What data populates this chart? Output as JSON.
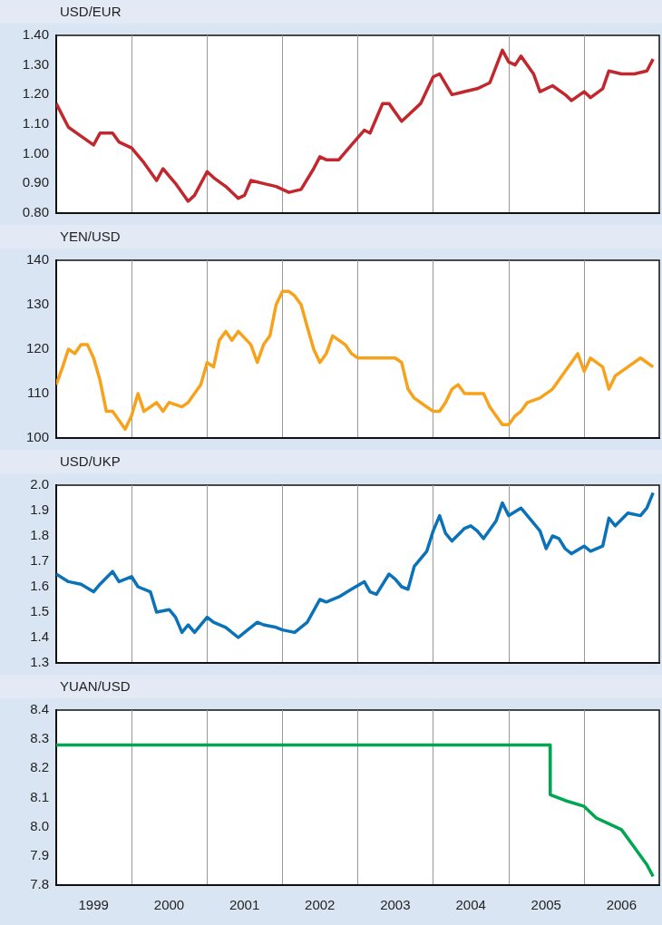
{
  "chart_data": [
    {
      "type": "line",
      "title": "USD/EUR",
      "color": "#c1272d",
      "grid": "x",
      "tick_labels": "y",
      "xlim": [
        "1999-01-01",
        "2006-12-31"
      ],
      "xticks": [
        {
          "value": "2000-01-01",
          "label": null
        },
        {
          "value": "2001-01-01",
          "label": null
        },
        {
          "value": "2002-01-01",
          "label": null
        },
        {
          "value": "2003-01-01",
          "label": null
        },
        {
          "value": "2004-01-01",
          "label": null
        },
        {
          "value": "2005-01-01",
          "label": null
        },
        {
          "value": "2006-01-01",
          "label": null
        }
      ],
      "ylim": [
        0.8,
        1.4
      ],
      "yticks": [
        {
          "value": 0.8,
          "label": "0.80"
        },
        {
          "value": 0.9,
          "label": "0.90"
        },
        {
          "value": 1.0,
          "label": "1.00"
        },
        {
          "value": 1.1,
          "label": "1.10"
        },
        {
          "value": 1.2,
          "label": "1.20"
        },
        {
          "value": 1.3,
          "label": "1.30"
        },
        {
          "value": 1.4,
          "label": "1.40"
        }
      ],
      "x": [
        "1999-01",
        "1999-03",
        "1999-05",
        "1999-07",
        "1999-08",
        "1999-10",
        "1999-11",
        "2000-01",
        "2000-03",
        "2000-05",
        "2000-06",
        "2000-08",
        "2000-10",
        "2000-11",
        "2001-01",
        "2001-02",
        "2001-04",
        "2001-06",
        "2001-07",
        "2001-08",
        "2001-10",
        "2001-12",
        "2002-02",
        "2002-04",
        "2002-06",
        "2002-07",
        "2002-08",
        "2002-10",
        "2002-12",
        "2003-02",
        "2003-03",
        "2003-05",
        "2003-06",
        "2003-08",
        "2003-09",
        "2003-11",
        "2004-01",
        "2004-02",
        "2004-04",
        "2004-06",
        "2004-08",
        "2004-10",
        "2004-12",
        "2005-01",
        "2005-02",
        "2005-03",
        "2005-05",
        "2005-06",
        "2005-08",
        "2005-10",
        "2005-11",
        "2006-01",
        "2006-02",
        "2006-04",
        "2006-05",
        "2006-07",
        "2006-09",
        "2006-11",
        "2006-12"
      ],
      "values": [
        1.17,
        1.09,
        1.06,
        1.03,
        1.07,
        1.07,
        1.04,
        1.02,
        0.97,
        0.91,
        0.95,
        0.9,
        0.84,
        0.86,
        0.94,
        0.92,
        0.89,
        0.85,
        0.86,
        0.91,
        0.9,
        0.89,
        0.87,
        0.88,
        0.95,
        0.99,
        0.98,
        0.98,
        1.03,
        1.08,
        1.07,
        1.17,
        1.17,
        1.11,
        1.13,
        1.17,
        1.26,
        1.27,
        1.2,
        1.21,
        1.22,
        1.24,
        1.35,
        1.31,
        1.3,
        1.33,
        1.27,
        1.21,
        1.23,
        1.2,
        1.18,
        1.21,
        1.19,
        1.22,
        1.28,
        1.27,
        1.27,
        1.28,
        1.32
      ]
    },
    {
      "type": "line",
      "title": "YEN/USD",
      "color": "#f7a21b",
      "grid": "x",
      "tick_labels": "y",
      "xlim": [
        "1999-01-01",
        "2006-12-31"
      ],
      "xticks": [
        {
          "value": "2000-01-01",
          "label": null
        },
        {
          "value": "2001-01-01",
          "label": null
        },
        {
          "value": "2002-01-01",
          "label": null
        },
        {
          "value": "2003-01-01",
          "label": null
        },
        {
          "value": "2004-01-01",
          "label": null
        },
        {
          "value": "2005-01-01",
          "label": null
        },
        {
          "value": "2006-01-01",
          "label": null
        }
      ],
      "ylim": [
        100,
        140
      ],
      "yticks": [
        100,
        110,
        120,
        130,
        140
      ],
      "x": [
        "1999-01",
        "1999-02",
        "1999-03",
        "1999-04",
        "1999-05",
        "1999-06",
        "1999-07",
        "1999-08",
        "1999-09",
        "1999-10",
        "1999-11",
        "1999-12",
        "2000-01",
        "2000-02",
        "2000-03",
        "2000-04",
        "2000-05",
        "2000-06",
        "2000-07",
        "2000-09",
        "2000-10",
        "2000-12",
        "2001-01",
        "2001-02",
        "2001-03",
        "2001-04",
        "2001-05",
        "2001-06",
        "2001-08",
        "2001-09",
        "2001-10",
        "2001-11",
        "2001-12",
        "2002-01",
        "2002-02",
        "2002-03",
        "2002-04",
        "2002-05",
        "2002-06",
        "2002-07",
        "2002-08",
        "2002-09",
        "2002-10",
        "2002-11",
        "2002-12",
        "2003-01",
        "2003-03",
        "2003-05",
        "2003-07",
        "2003-08",
        "2003-09",
        "2003-10",
        "2003-12",
        "2004-01",
        "2004-02",
        "2004-03",
        "2004-04",
        "2004-05",
        "2004-06",
        "2004-08",
        "2004-09",
        "2004-10",
        "2004-12",
        "2005-01",
        "2005-02",
        "2005-03",
        "2005-04",
        "2005-06",
        "2005-08",
        "2005-10",
        "2005-12",
        "2006-01",
        "2006-02",
        "2006-04",
        "2006-05",
        "2006-06",
        "2006-08",
        "2006-10",
        "2006-11",
        "2006-12"
      ],
      "values": [
        112,
        116,
        120,
        119,
        121,
        121,
        118,
        113,
        106,
        106,
        104,
        102,
        105,
        110,
        106,
        107,
        108,
        106,
        108,
        107,
        108,
        112,
        117,
        116,
        122,
        124,
        122,
        124,
        121,
        117,
        121,
        123,
        130,
        133,
        133,
        132,
        130,
        125,
        120,
        117,
        119,
        123,
        122,
        121,
        119,
        118,
        118,
        118,
        118,
        117,
        111,
        109,
        107,
        106,
        106,
        108,
        111,
        112,
        110,
        110,
        110,
        107,
        103,
        103,
        105,
        106,
        108,
        109,
        111,
        115,
        119,
        115,
        118,
        116,
        111,
        114,
        116,
        118,
        117,
        116
      ]
    },
    {
      "type": "line",
      "title": "USD/UKP",
      "color": "#0a72b8",
      "grid": "x",
      "tick_labels": "y",
      "xlim": [
        "1999-01-01",
        "2006-12-31"
      ],
      "xticks": [
        {
          "value": "2000-01-01",
          "label": null
        },
        {
          "value": "2001-01-01",
          "label": null
        },
        {
          "value": "2002-01-01",
          "label": null
        },
        {
          "value": "2003-01-01",
          "label": null
        },
        {
          "value": "2004-01-01",
          "label": null
        },
        {
          "value": "2005-01-01",
          "label": null
        },
        {
          "value": "2006-01-01",
          "label": null
        }
      ],
      "ylim": [
        1.3,
        2.0
      ],
      "yticks": [
        1.3,
        1.4,
        1.5,
        1.6,
        1.7,
        1.8,
        1.9,
        {
          "value": 2.0,
          "label": "2.0"
        }
      ],
      "x": [
        "1999-01",
        "1999-03",
        "1999-05",
        "1999-07",
        "1999-08",
        "1999-10",
        "1999-11",
        "2000-01",
        "2000-02",
        "2000-04",
        "2000-05",
        "2000-07",
        "2000-08",
        "2000-09",
        "2000-10",
        "2000-11",
        "2001-01",
        "2001-02",
        "2001-04",
        "2001-06",
        "2001-07",
        "2001-09",
        "2001-10",
        "2001-12",
        "2002-01",
        "2002-03",
        "2002-05",
        "2002-07",
        "2002-08",
        "2002-10",
        "2002-12",
        "2003-02",
        "2003-03",
        "2003-04",
        "2003-06",
        "2003-07",
        "2003-08",
        "2003-09",
        "2003-10",
        "2003-12",
        "2004-01",
        "2004-02",
        "2004-03",
        "2004-04",
        "2004-06",
        "2004-07",
        "2004-08",
        "2004-09",
        "2004-11",
        "2004-12",
        "2005-01",
        "2005-03",
        "2005-04",
        "2005-06",
        "2005-07",
        "2005-08",
        "2005-09",
        "2005-10",
        "2005-11",
        "2006-01",
        "2006-02",
        "2006-04",
        "2006-05",
        "2006-06",
        "2006-08",
        "2006-10",
        "2006-11",
        "2006-12"
      ],
      "values": [
        1.65,
        1.62,
        1.61,
        1.58,
        1.61,
        1.66,
        1.62,
        1.64,
        1.6,
        1.58,
        1.5,
        1.51,
        1.48,
        1.42,
        1.45,
        1.42,
        1.48,
        1.46,
        1.44,
        1.4,
        1.42,
        1.46,
        1.45,
        1.44,
        1.43,
        1.42,
        1.46,
        1.55,
        1.54,
        1.56,
        1.59,
        1.62,
        1.58,
        1.57,
        1.65,
        1.63,
        1.6,
        1.59,
        1.68,
        1.74,
        1.82,
        1.88,
        1.81,
        1.78,
        1.83,
        1.84,
        1.82,
        1.79,
        1.86,
        1.93,
        1.88,
        1.91,
        1.88,
        1.82,
        1.75,
        1.8,
        1.79,
        1.75,
        1.73,
        1.76,
        1.74,
        1.76,
        1.87,
        1.84,
        1.89,
        1.88,
        1.91,
        1.97
      ]
    },
    {
      "type": "line",
      "title": "YUAN/USD",
      "color": "#00a651",
      "grid": "x",
      "xlim": [
        "1999-01-01",
        "2006-12-31"
      ],
      "xticks": [
        {
          "value": "1999-07-01",
          "label": "1999"
        },
        {
          "value": "2000-01-01",
          "label": null
        },
        {
          "value": "2000-07-01",
          "label": "2000"
        },
        {
          "value": "2001-01-01",
          "label": null
        },
        {
          "value": "2001-07-01",
          "label": "2001"
        },
        {
          "value": "2002-01-01",
          "label": null
        },
        {
          "value": "2002-07-01",
          "label": "2002"
        },
        {
          "value": "2003-01-01",
          "label": null
        },
        {
          "value": "2003-07-01",
          "label": "2003"
        },
        {
          "value": "2004-01-01",
          "label": null
        },
        {
          "value": "2004-07-01",
          "label": "2004"
        },
        {
          "value": "2005-01-01",
          "label": null
        },
        {
          "value": "2005-07-01",
          "label": "2005"
        },
        {
          "value": "2006-01-01",
          "label": null
        },
        {
          "value": "2006-07-01",
          "label": "2006"
        }
      ],
      "ylim": [
        7.8,
        8.4
      ],
      "yticks": [
        7.8,
        7.9,
        {
          "value": 8.0,
          "label": "8.0"
        },
        8.1,
        8.2,
        8.3,
        8.4
      ],
      "x": [
        "1999-01",
        "2000-01",
        "2001-01",
        "2002-01",
        "2003-01",
        "2004-01",
        "2005-01",
        "2005-07-20",
        "2005-07-21",
        "2005-10",
        "2006-01",
        "2006-03",
        "2006-05",
        "2006-07",
        "2006-09",
        "2006-10",
        "2006-11",
        "2006-12"
      ],
      "values": [
        8.28,
        8.28,
        8.28,
        8.28,
        8.28,
        8.28,
        8.28,
        8.28,
        8.11,
        8.09,
        8.07,
        8.03,
        8.01,
        7.99,
        7.93,
        7.9,
        7.87,
        7.83
      ]
    }
  ]
}
